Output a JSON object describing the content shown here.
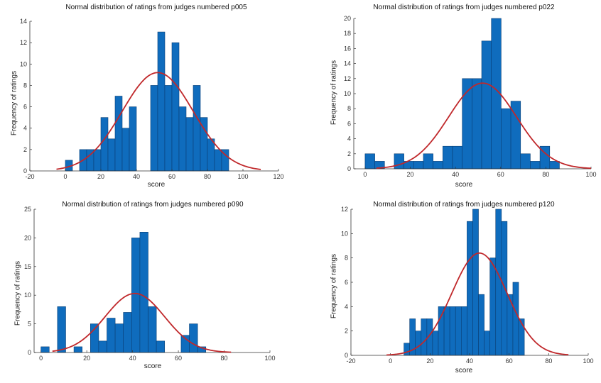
{
  "chart_data": [
    {
      "type": "bar",
      "title": "Normal distribution of ratings from judges numbered p005",
      "xlabel": "score",
      "ylabel": "Frequency of ratings",
      "xlim": [
        -20,
        120
      ],
      "ylim": [
        0,
        14
      ],
      "xticks": [
        -20,
        0,
        20,
        40,
        60,
        80,
        100,
        120
      ],
      "yticks": [
        0,
        2,
        4,
        6,
        8,
        10,
        12,
        14
      ],
      "bin_width": 4,
      "bins_x": [
        0,
        8,
        12,
        16,
        20,
        24,
        28,
        32,
        36,
        48,
        52,
        56,
        60,
        64,
        68,
        72,
        76,
        80,
        84,
        88
      ],
      "values": [
        1,
        2,
        2,
        2,
        5,
        3,
        7,
        4,
        6,
        8,
        13,
        8,
        12,
        6,
        5,
        8,
        5,
        3,
        2,
        2
      ],
      "fit": {
        "mean": 52,
        "peak": 9.2,
        "std": 20,
        "range": [
          -5,
          110
        ]
      }
    },
    {
      "type": "bar",
      "title": "Normal distribution of ratings from judges numbered p022",
      "xlabel": "score",
      "ylabel": "Frequency of ratings",
      "xlim": [
        -5,
        100
      ],
      "ylim": [
        0,
        20
      ],
      "xticks": [
        0,
        20,
        40,
        60,
        80,
        100
      ],
      "yticks": [
        0,
        2,
        4,
        6,
        8,
        10,
        12,
        14,
        16,
        18,
        20
      ],
      "bin_width": 4.3,
      "bins_x": [
        0,
        4.3,
        8.6,
        12.9,
        17.2,
        21.5,
        25.8,
        30.1,
        34.4,
        38.7,
        43,
        47.3,
        51.6,
        55.9,
        60.2,
        64.5,
        68.8,
        73.1,
        77.4,
        81.7
      ],
      "values": [
        2,
        1,
        0,
        2,
        1,
        1,
        2,
        1,
        3,
        3,
        12,
        12,
        17,
        20,
        8,
        9,
        2,
        1,
        3,
        1
      ],
      "fit": {
        "mean": 52,
        "peak": 11.4,
        "std": 15,
        "range": [
          5,
          100
        ]
      }
    },
    {
      "type": "bar",
      "title": "Normal distribution of ratings from judges numbered p090",
      "xlabel": "score",
      "ylabel": "Frequency of ratings",
      "xlim": [
        -3,
        100
      ],
      "ylim": [
        0,
        25
      ],
      "xticks": [
        0,
        20,
        40,
        60,
        80,
        100
      ],
      "yticks": [
        0,
        5,
        10,
        15,
        20,
        25
      ],
      "bin_width": 3.6,
      "bins_x": [
        0,
        7.2,
        14.4,
        21.6,
        25.2,
        28.8,
        32.4,
        36,
        39.6,
        43.2,
        46.8,
        50.4,
        61.2,
        64.8,
        68.4
      ],
      "values": [
        1,
        8,
        1,
        5,
        2,
        6,
        5,
        7,
        20,
        21,
        8,
        2,
        3,
        5,
        1
      ],
      "fit": {
        "mean": 41,
        "peak": 10.3,
        "std": 13,
        "range": [
          5,
          83
        ]
      }
    },
    {
      "type": "bar",
      "title": "Normal distribution of ratings from judges numbered p120",
      "xlabel": "score",
      "ylabel": "Frequency of ratings",
      "xlim": [
        -20,
        100
      ],
      "ylim": [
        0,
        12
      ],
      "xticks": [
        -20,
        0,
        20,
        40,
        60,
        80,
        100
      ],
      "yticks": [
        0,
        2,
        4,
        6,
        8,
        10,
        12
      ],
      "bin_width": 2.9,
      "bins_x": [
        6.8,
        9.7,
        12.6,
        15.5,
        18.4,
        21.3,
        24.2,
        27.1,
        30,
        32.9,
        35.8,
        38.7,
        41.6,
        44.5,
        47.4,
        50.3,
        53.2,
        56.1,
        59,
        61.9,
        64.8
      ],
      "values": [
        1,
        3,
        2,
        3,
        3,
        2,
        4,
        4,
        4,
        4,
        4,
        11,
        12,
        5,
        2,
        8,
        12,
        11,
        5,
        6,
        3
      ],
      "fit": {
        "mean": 45,
        "peak": 8.4,
        "std": 14,
        "range": [
          -2,
          90
        ]
      }
    }
  ]
}
